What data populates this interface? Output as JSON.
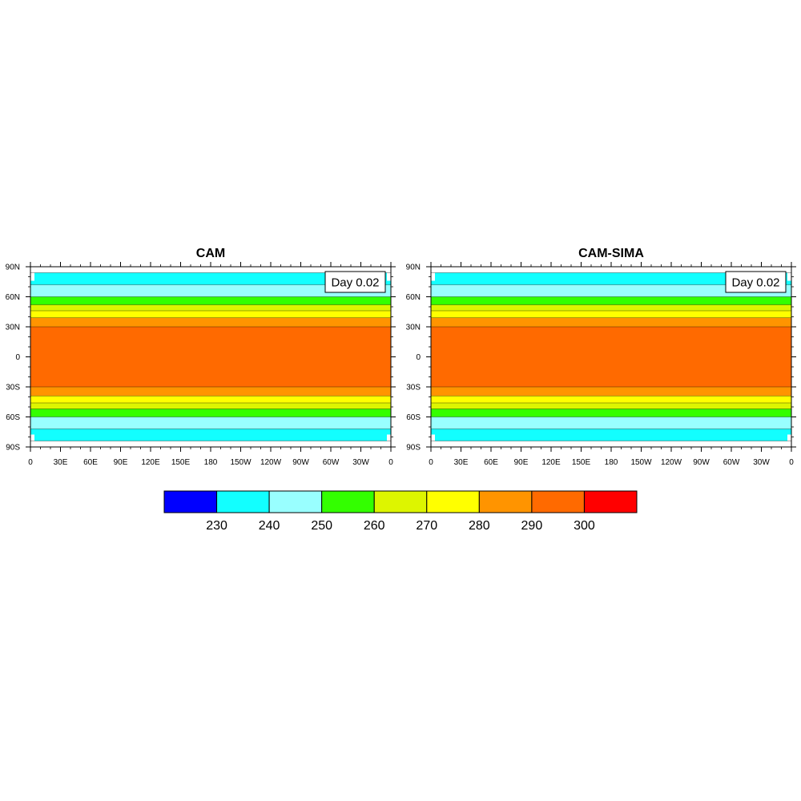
{
  "chart_data": {
    "type": "contour-map",
    "panels": [
      {
        "title": "CAM",
        "annotation": "Day 0.02"
      },
      {
        "title": "CAM-SIMA",
        "annotation": "Day 0.02"
      }
    ],
    "x_ticks": [
      "0",
      "30E",
      "60E",
      "90E",
      "120E",
      "150E",
      "180",
      "150W",
      "120W",
      "90W",
      "60W",
      "30W",
      "0"
    ],
    "y_ticks": [
      "90N",
      "60N",
      "30N",
      "0",
      "30S",
      "60S",
      "90S"
    ],
    "xlim": [
      0,
      360
    ],
    "ylim": [
      -90,
      90
    ],
    "bands": [
      {
        "lat_from": 84,
        "lat_to": 90,
        "color": "#ffffff"
      },
      {
        "lat_from": 72,
        "lat_to": 84,
        "color": "#12ffff"
      },
      {
        "lat_from": 60,
        "lat_to": 72,
        "color": "#99ffff"
      },
      {
        "lat_from": 52,
        "lat_to": 60,
        "color": "#33ff00"
      },
      {
        "lat_from": 46,
        "lat_to": 52,
        "color": "#ddf500"
      },
      {
        "lat_from": 39,
        "lat_to": 46,
        "color": "#ffff00"
      },
      {
        "lat_from": 30,
        "lat_to": 39,
        "color": "#ff9400"
      },
      {
        "lat_from": -30,
        "lat_to": 30,
        "color": "#ff6a00"
      },
      {
        "lat_from": -39,
        "lat_to": -30,
        "color": "#ff9400"
      },
      {
        "lat_from": -46,
        "lat_to": -39,
        "color": "#ffff00"
      },
      {
        "lat_from": -52,
        "lat_to": -46,
        "color": "#ddf500"
      },
      {
        "lat_from": -60,
        "lat_to": -52,
        "color": "#33ff00"
      },
      {
        "lat_from": -72,
        "lat_to": -60,
        "color": "#99ffff"
      },
      {
        "lat_from": -84,
        "lat_to": -72,
        "color": "#12ffff"
      },
      {
        "lat_from": -90,
        "lat_to": -84,
        "color": "#ffffff"
      }
    ],
    "colorbar": {
      "colors": [
        "#0000ff",
        "#12ffff",
        "#99ffff",
        "#33ff00",
        "#ddf500",
        "#ffff00",
        "#ff9400",
        "#ff6a00",
        "#ff0000"
      ],
      "labels": [
        "230",
        "240",
        "250",
        "260",
        "270",
        "280",
        "290",
        "300"
      ]
    }
  }
}
